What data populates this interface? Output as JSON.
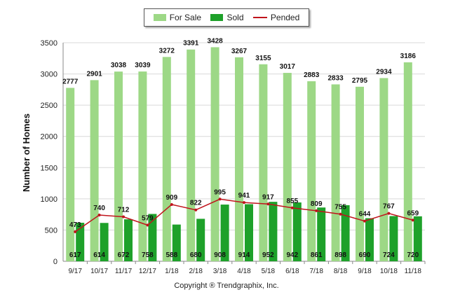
{
  "legend": {
    "for_sale": "For Sale",
    "sold": "Sold",
    "pended": "Pended"
  },
  "colors": {
    "for_sale": "#9dd886",
    "sold": "#1ea12a",
    "pended": "#c0141c"
  },
  "copyright": "Copyright ® Trendgraphix, Inc.",
  "chart_data": {
    "type": "bar",
    "categories": [
      "9/17",
      "10/17",
      "11/17",
      "12/17",
      "1/18",
      "2/18",
      "3/18",
      "4/18",
      "5/18",
      "6/18",
      "7/18",
      "8/18",
      "9/18",
      "10/18",
      "11/18"
    ],
    "series": [
      {
        "name": "For Sale",
        "type": "bar",
        "values": [
          2777,
          2901,
          3038,
          3039,
          3272,
          3391,
          3428,
          3267,
          3155,
          3017,
          2883,
          2833,
          2795,
          2934,
          3186
        ]
      },
      {
        "name": "Sold",
        "type": "bar",
        "values": [
          617,
          614,
          672,
          758,
          588,
          680,
          908,
          914,
          952,
          942,
          861,
          898,
          690,
          724,
          720
        ]
      },
      {
        "name": "Pended",
        "type": "line",
        "values": [
          473,
          740,
          712,
          579,
          909,
          822,
          995,
          941,
          917,
          855,
          809,
          755,
          644,
          767,
          659
        ]
      }
    ],
    "ylabel": "Number of Homes",
    "xlabel": "",
    "ylim": [
      0,
      3500
    ],
    "yticks": [
      0,
      500,
      1000,
      1500,
      2000,
      2500,
      3000,
      3500
    ],
    "grid": true,
    "legend_position": "top-center"
  }
}
